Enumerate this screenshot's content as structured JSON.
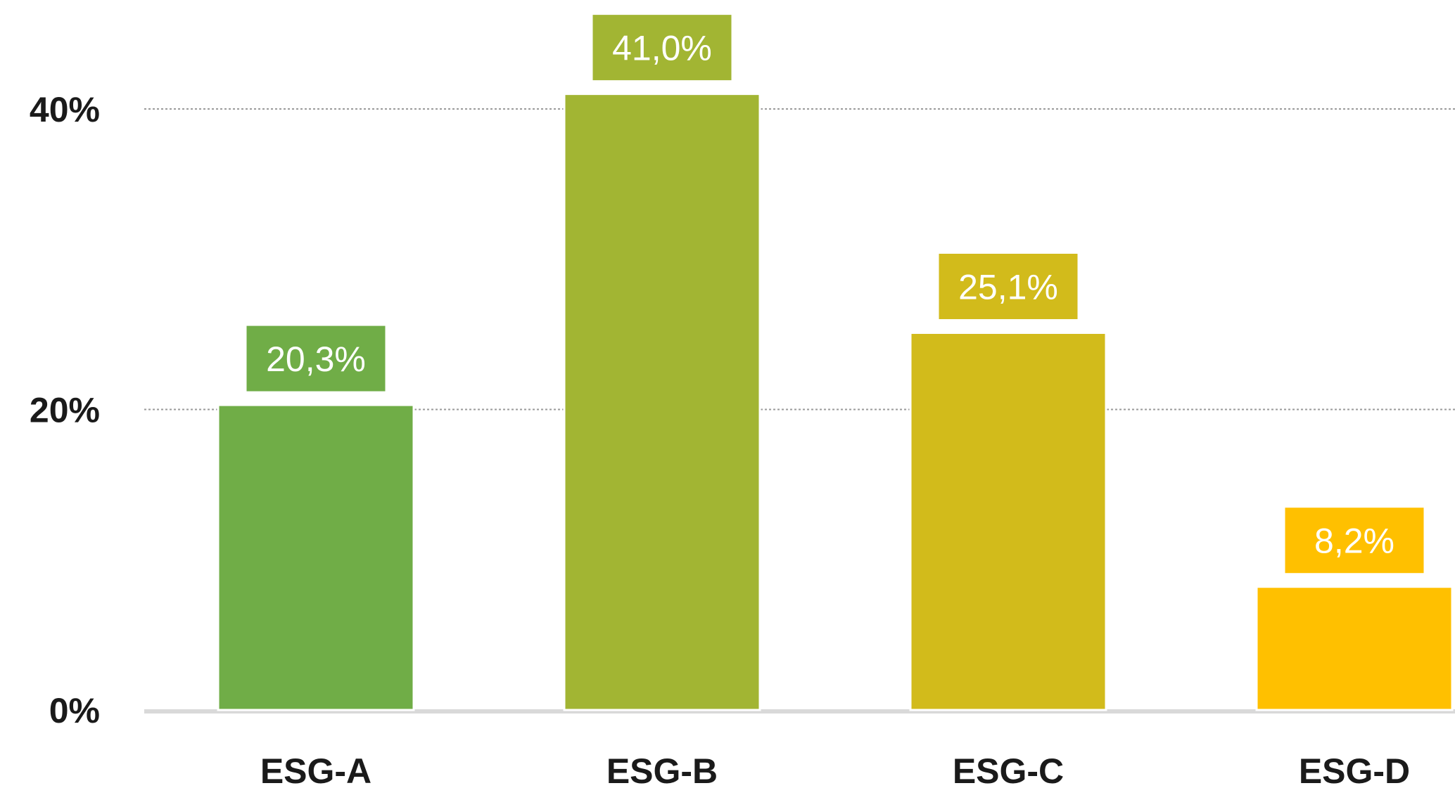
{
  "chart_data": {
    "type": "bar",
    "categories": [
      "ESG-A",
      "ESG-B",
      "ESG-C",
      "ESG-D"
    ],
    "values": [
      20.3,
      41.0,
      25.1,
      8.2
    ],
    "data_labels": [
      "20,3%",
      "41,0%",
      "25,1%",
      "8,2%"
    ],
    "colors": [
      "#70ad47",
      "#a2b533",
      "#d2bb1b",
      "#ffc000"
    ],
    "y_ticks": [
      {
        "value": 0,
        "label": "0%"
      },
      {
        "value": 20,
        "label": "20%"
      },
      {
        "value": 40,
        "label": "40%"
      }
    ],
    "ylim": [
      0,
      40
    ],
    "grid": true,
    "title": "",
    "xlabel": "",
    "ylabel": ""
  }
}
